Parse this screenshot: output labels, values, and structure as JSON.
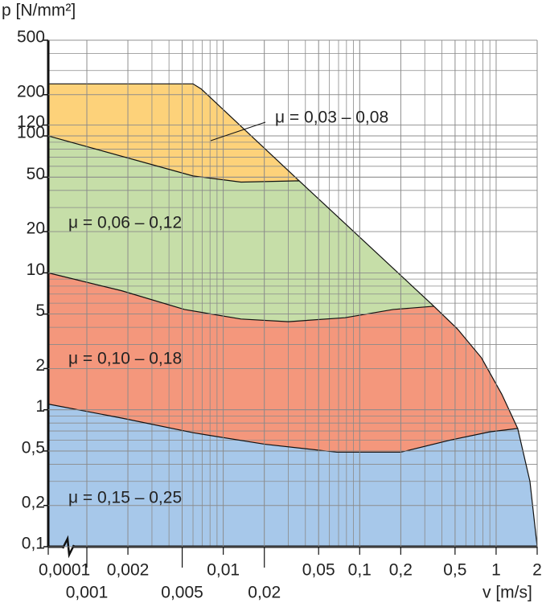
{
  "chart_data": {
    "type": "area-regions",
    "y_label": "p [N/mm²]",
    "x_label": "v [m/s]",
    "x_scale": "log",
    "y_scale": "log",
    "grid": true,
    "xlim": [
      0.0001,
      2
    ],
    "x_break": [
      0.0001,
      0.001
    ],
    "ylim": [
      0.1,
      500
    ],
    "xticks": [
      {
        "value": 0.0001,
        "label": "0,0001"
      },
      {
        "value": 0.001,
        "label": "0,001"
      },
      {
        "value": 0.002,
        "label": "0,002"
      },
      {
        "value": 0.005,
        "label": "0,005"
      },
      {
        "value": 0.01,
        "label": "0,01"
      },
      {
        "value": 0.02,
        "label": "0,02"
      },
      {
        "value": 0.05,
        "label": "0,05"
      },
      {
        "value": 0.1,
        "label": "0,1"
      },
      {
        "value": 0.2,
        "label": "0,2"
      },
      {
        "value": 0.5,
        "label": "0,5"
      },
      1,
      2
    ],
    "yticks": [
      {
        "value": 0.1,
        "label": "0,1"
      },
      {
        "value": 0.2,
        "label": "0,2"
      },
      {
        "value": 0.5,
        "label": "0,5"
      },
      1,
      2,
      5,
      10,
      20,
      50,
      100,
      120,
      200,
      500
    ],
    "series": [
      {
        "name": "μ = 0,03 – 0,08",
        "color": "#fdd27a",
        "x": [
          0.0001,
          0.006,
          0.0069,
          0.036
        ],
        "values": [
          240,
          240,
          220,
          47
        ]
      },
      {
        "name": "μ = 0,06 – 0,12",
        "color": "#c6dea8",
        "x": [
          0.0001,
          0.006,
          0.0135,
          0.036,
          0.35
        ],
        "values": [
          100,
          51,
          46,
          47,
          5.7
        ]
      },
      {
        "name": "μ = 0,10 – 0,18",
        "color": "#f4977c",
        "x": [
          0.0001,
          0.0018,
          0.0052,
          0.0135,
          0.03,
          0.078,
          0.176,
          0.35,
          0.52,
          0.78,
          1.1,
          1.44
        ],
        "values": [
          10,
          7.4,
          5.4,
          4.6,
          4.4,
          4.7,
          5.4,
          5.7,
          3.9,
          2.4,
          1.3,
          0.73
        ]
      },
      {
        "name": "μ = 0,15 – 0,25",
        "color": "#a7c8ea",
        "x": [
          0.0001,
          0.0018,
          0.006,
          0.0202,
          0.068,
          0.2,
          0.46,
          0.9,
          1.44,
          1.77,
          2
        ],
        "values": [
          1.1,
          0.87,
          0.68,
          0.56,
          0.49,
          0.49,
          0.6,
          0.69,
          0.73,
          0.3,
          0.1
        ]
      }
    ]
  }
}
